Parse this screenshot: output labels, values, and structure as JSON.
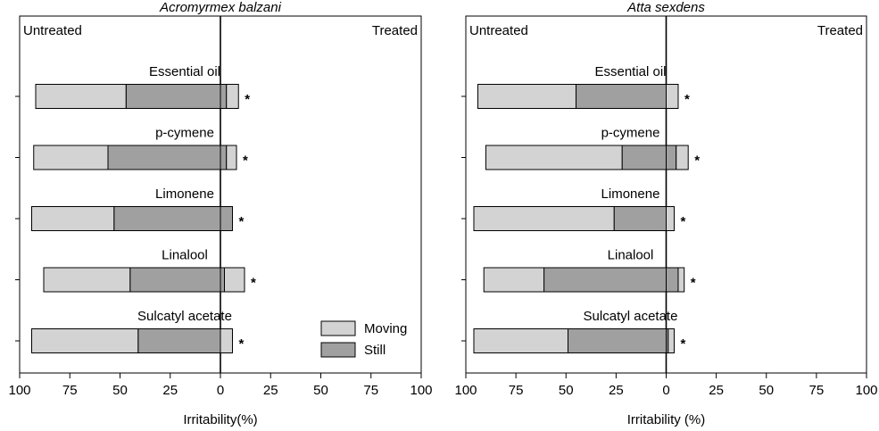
{
  "chart_data": [
    {
      "type": "bar",
      "orientation": "horizontal",
      "title": "Acromyrmex balzani",
      "xlabel": "Irritability(%)",
      "annotations": [
        "Untreated",
        "Treated"
      ],
      "categories": [
        "Essential oil",
        "p-cymene",
        "Limonene",
        "Linalool",
        "Sulcatyl acetate"
      ],
      "series": [
        {
          "name": "Still",
          "color": "#a0a0a0",
          "values": [
            -47,
            -56,
            -53,
            -45,
            -41
          ],
          "treated_values": [
            3,
            3,
            6,
            2,
            0
          ]
        },
        {
          "name": "Moving",
          "color": "#d3d3d3",
          "values": [
            -45,
            -37,
            -41,
            -43,
            -53
          ],
          "treated_values": [
            6,
            5,
            0,
            10,
            6
          ]
        }
      ],
      "markers": [
        "*",
        "*",
        "*",
        "*",
        "*"
      ],
      "xlim": [
        -100,
        100
      ],
      "xticks": [
        {
          "value": -100,
          "label": "100"
        },
        {
          "value": -75,
          "label": "75"
        },
        {
          "value": -50,
          "label": "50"
        },
        {
          "value": -25,
          "label": "25"
        },
        0,
        25,
        50,
        75,
        100
      ],
      "legend": "lower right"
    },
    {
      "type": "bar",
      "orientation": "horizontal",
      "title": "Atta sexdens",
      "xlabel": "Irritability (%)",
      "annotations": [
        "Untreated",
        "Treated"
      ],
      "categories": [
        "Essential oil",
        "p-cymene",
        "Limonene",
        "Linalool",
        "Sulcatyl acetate"
      ],
      "series": [
        {
          "color": "#a0a0a0",
          "values": [
            -45,
            -22,
            -26,
            -61,
            -49
          ],
          "treated_values": [
            0,
            5,
            0,
            6,
            1
          ]
        },
        {
          "color": "#d3d3d3",
          "values": [
            -49,
            -68,
            -70,
            -30,
            -47
          ],
          "treated_values": [
            6,
            6,
            4,
            3,
            3
          ]
        }
      ],
      "markers": [
        "*",
        "*",
        "*",
        "*",
        "*"
      ],
      "xlim": [
        -100,
        100
      ],
      "xticks": [
        {
          "value": -100,
          "label": "100"
        },
        {
          "value": -75,
          "label": "75"
        },
        {
          "value": -50,
          "label": "50"
        },
        {
          "value": -25,
          "label": "25"
        },
        0,
        25,
        50,
        75,
        100
      ]
    }
  ]
}
